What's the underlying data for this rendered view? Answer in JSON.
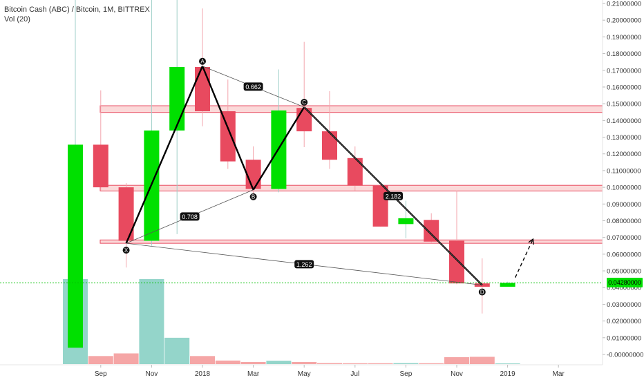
{
  "header": {
    "symbol_line": "Bitcoin Cash (ABC) / Bitcoin, 1M, BITTREX",
    "volume_line": "Vol (20)"
  },
  "colors": {
    "up": "#00e000",
    "down": "#e84a5f",
    "vol_up": "#94d5ca",
    "vol_down": "#f5a6a6",
    "zone_fill": "#fbd9d9",
    "zone_stroke": "#e84a5f",
    "pattern": "#000000",
    "current_price_line": "#00c000"
  },
  "chart_data": {
    "type": "candlestick",
    "title": "Bitcoin Cash (ABC) / Bitcoin, 1M, BITTREX",
    "y_axis": {
      "min": -0.003,
      "max": 0.212,
      "ticks": [
        0.21,
        0.2,
        0.19,
        0.18,
        0.17,
        0.16,
        0.15,
        0.14,
        0.13,
        0.12,
        0.11,
        0.1,
        0.09,
        0.08,
        0.07,
        0.06,
        0.05,
        0.04,
        0.03,
        0.02,
        0.01,
        0.0
      ],
      "tick_labels": [
        "0.21000000",
        "0.20000000",
        "0.19000000",
        "0.18000000",
        "0.17000000",
        "0.16000000",
        "0.15000000",
        "0.14000000",
        "0.13000000",
        "0.12000000",
        "0.11000000",
        "0.10000000",
        "0.09000000",
        "0.08000000",
        "0.07000000",
        "0.06000000",
        "0.05000000",
        "0.04000000",
        "0.03000000",
        "0.02000000",
        "0.01000000",
        "-0.00000000"
      ]
    },
    "x_axis": {
      "labels": [
        {
          "label": "Sep",
          "index": 1
        },
        {
          "label": "Nov",
          "index": 3
        },
        {
          "label": "2018",
          "index": 5
        },
        {
          "label": "Mar",
          "index": 7
        },
        {
          "label": "May",
          "index": 9
        },
        {
          "label": "Jul",
          "index": 11
        },
        {
          "label": "Sep",
          "index": 13
        },
        {
          "label": "Nov",
          "index": 15
        },
        {
          "label": "2019",
          "index": 17
        },
        {
          "label": "Mar",
          "index": 19
        }
      ]
    },
    "candles": [
      {
        "month": "2017-08",
        "open": 0.004,
        "high": 0.214,
        "low": 0.004,
        "close": 0.1255,
        "volume": 1.0
      },
      {
        "month": "2017-09",
        "open": 0.1255,
        "high": 0.158,
        "low": 0.098,
        "close": 0.1,
        "volume": 0.095
      },
      {
        "month": "2017-10",
        "open": 0.1,
        "high": 0.1025,
        "low": 0.052,
        "close": 0.068,
        "volume": 0.126
      },
      {
        "month": "2017-11",
        "open": 0.068,
        "high": 0.214,
        "low": 0.065,
        "close": 0.134,
        "volume": 1.0
      },
      {
        "month": "2017-12",
        "open": 0.134,
        "high": 0.214,
        "low": 0.072,
        "close": 0.172,
        "volume": 0.31
      },
      {
        "month": "2018-01",
        "open": 0.172,
        "high": 0.207,
        "low": 0.1365,
        "close": 0.1455,
        "volume": 0.095
      },
      {
        "month": "2018-02",
        "open": 0.1455,
        "high": 0.1645,
        "low": 0.111,
        "close": 0.1155,
        "volume": 0.042
      },
      {
        "month": "2018-03",
        "open": 0.1165,
        "high": 0.1245,
        "low": 0.0955,
        "close": 0.099,
        "volume": 0.025
      },
      {
        "month": "2018-04",
        "open": 0.099,
        "high": 0.1705,
        "low": 0.097,
        "close": 0.146,
        "volume": 0.04
      },
      {
        "month": "2018-05",
        "open": 0.1475,
        "high": 0.187,
        "low": 0.124,
        "close": 0.1335,
        "volume": 0.025
      },
      {
        "month": "2018-06",
        "open": 0.1335,
        "high": 0.1575,
        "low": 0.111,
        "close": 0.1165,
        "volume": 0.012
      },
      {
        "month": "2018-07",
        "open": 0.1175,
        "high": 0.1245,
        "low": 0.098,
        "close": 0.101,
        "volume": 0.01
      },
      {
        "month": "2018-08",
        "open": 0.101,
        "high": 0.101,
        "low": 0.0765,
        "close": 0.0765,
        "volume": 0.01
      },
      {
        "month": "2018-09",
        "open": 0.078,
        "high": 0.092,
        "low": 0.0695,
        "close": 0.0815,
        "volume": 0.012
      },
      {
        "month": "2018-10",
        "open": 0.0805,
        "high": 0.0845,
        "low": 0.067,
        "close": 0.0675,
        "volume": 0.01
      },
      {
        "month": "2018-11",
        "open": 0.068,
        "high": 0.098,
        "low": 0.042,
        "close": 0.0425,
        "volume": 0.082
      },
      {
        "month": "2018-12",
        "open": 0.0425,
        "high": 0.0575,
        "low": 0.0245,
        "close": 0.0405,
        "volume": 0.086
      },
      {
        "month": "2019-01",
        "open": 0.0405,
        "high": 0.0435,
        "low": 0.0405,
        "close": 0.0428,
        "volume": 0.0
      }
    ],
    "current_price": 0.0428,
    "current_price_label": "0.04280000",
    "zones": [
      {
        "from": 0.1448,
        "to": 0.1488
      },
      {
        "from": 0.0978,
        "to": 0.1012
      },
      {
        "from": 0.0665,
        "to": 0.0685
      }
    ],
    "pattern_points": [
      {
        "label": "X",
        "index": 2,
        "price": 0.0665
      },
      {
        "label": "A",
        "index": 5,
        "price": 0.1725
      },
      {
        "label": "B",
        "index": 7,
        "price": 0.0985
      },
      {
        "label": "C",
        "index": 9,
        "price": 0.148
      },
      {
        "label": "D",
        "index": 16,
        "price": 0.0415
      }
    ],
    "ratios": [
      {
        "label": "0.662",
        "from": "A",
        "to": "C"
      },
      {
        "label": "0.708",
        "from": "X",
        "to": "B"
      },
      {
        "label": "2.182",
        "from": "C",
        "to": "D"
      },
      {
        "label": "1.262",
        "from": "X",
        "to": "D"
      }
    ],
    "projection": {
      "from_index": 17.3,
      "from_price": 0.046,
      "to_index": 18.0,
      "to_price": 0.069
    }
  }
}
